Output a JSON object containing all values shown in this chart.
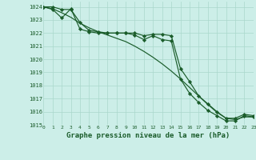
{
  "title": "Graphe pression niveau de la mer (hPa)",
  "bg_color": "#cceee8",
  "grid_color": "#aad8cc",
  "line_color": "#1a5c2a",
  "xlim": [
    0,
    23
  ],
  "ylim": [
    1015,
    1024.4
  ],
  "xticks": [
    0,
    1,
    2,
    3,
    4,
    5,
    6,
    7,
    8,
    9,
    10,
    11,
    12,
    13,
    14,
    15,
    16,
    17,
    18,
    19,
    20,
    21,
    22,
    23
  ],
  "yticks": [
    1015,
    1016,
    1017,
    1018,
    1019,
    1020,
    1021,
    1022,
    1023,
    1024
  ],
  "series_smooth": [
    1024.0,
    1023.85,
    1023.55,
    1023.2,
    1022.75,
    1022.4,
    1022.1,
    1021.85,
    1021.6,
    1021.35,
    1021.0,
    1020.6,
    1020.15,
    1019.65,
    1019.1,
    1018.5,
    1017.85,
    1017.2,
    1016.55,
    1015.95,
    1015.5,
    1015.4,
    1015.6,
    1015.6
  ],
  "series_upper": [
    1024.0,
    1024.0,
    1023.8,
    1023.8,
    1022.8,
    1022.2,
    1022.1,
    1022.0,
    1022.0,
    1022.0,
    1022.0,
    1021.8,
    1021.9,
    1021.9,
    1021.8,
    1019.3,
    1018.3,
    1017.2,
    1016.6,
    1016.0,
    1015.5,
    1015.5,
    1015.8,
    1015.7
  ],
  "series_steep": [
    1024.0,
    1023.8,
    1023.15,
    1023.85,
    1022.3,
    1022.1,
    1022.0,
    1022.0,
    1022.0,
    1022.0,
    1021.85,
    1021.5,
    1021.8,
    1021.5,
    1021.4,
    1018.5,
    1017.4,
    1016.7,
    1016.1,
    1015.7,
    1015.3,
    1015.3,
    1015.7,
    1015.6
  ]
}
